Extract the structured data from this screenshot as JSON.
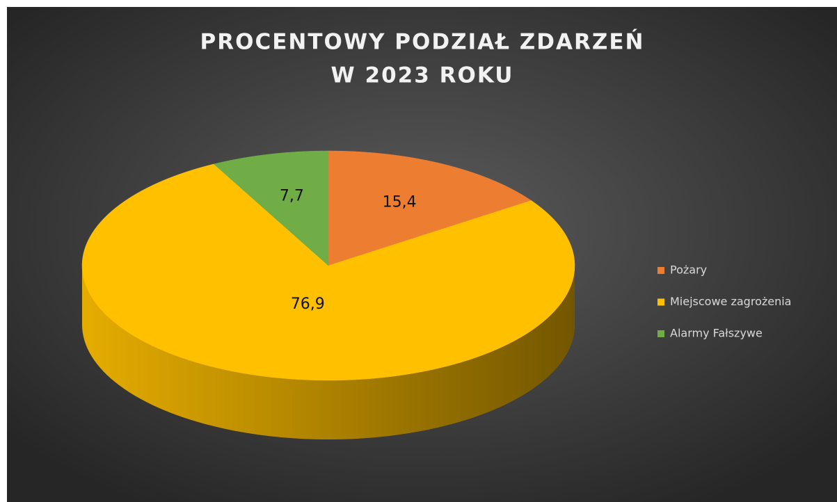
{
  "chart_data": {
    "type": "pie3d",
    "title": [
      "PROCENTOWY PODZIAŁ ZDARZEŃ",
      "W 2023 ROKU"
    ],
    "categories": [
      "Pożary",
      "Miejscowe zagrożenia",
      "Alarmy Fałszywe"
    ],
    "values": [
      15.4,
      76.9,
      7.7
    ],
    "value_labels": [
      "15,4",
      "76,9",
      "7,7"
    ],
    "colors": [
      "#ed7d31",
      "#ffc000",
      "#70ad47"
    ],
    "legend": "right"
  }
}
